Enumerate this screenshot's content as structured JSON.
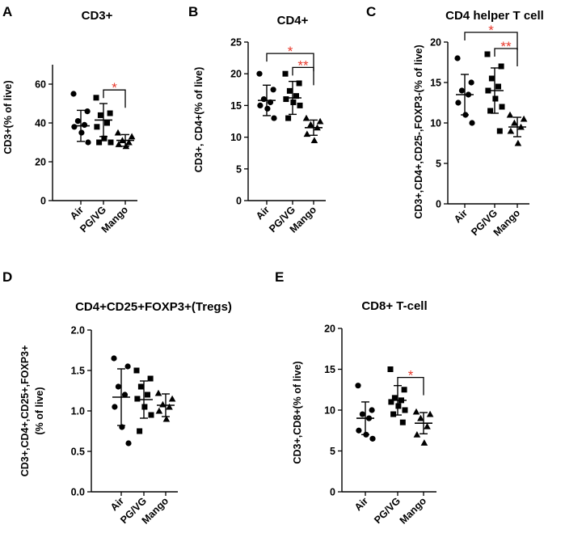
{
  "figure_colors": {
    "points": "#000000",
    "significance": "#e8392c"
  },
  "chart_data": [
    {
      "panel": "A",
      "type": "scatter",
      "title": "CD3+",
      "ylabel": "CD3+(% of live)",
      "categories": [
        "Air",
        "PG/VG",
        "Mango"
      ],
      "ylim": [
        0,
        70
      ],
      "yticks": [
        0,
        20,
        40,
        60
      ],
      "markers": [
        "circle",
        "square",
        "triangle"
      ],
      "groups": [
        {
          "name": "Air",
          "mean": 38.5,
          "sd": 8,
          "points": [
            55,
            46,
            41,
            39,
            38,
            35,
            30
          ]
        },
        {
          "name": "PG/VG",
          "mean": 41.5,
          "sd": 8.5,
          "points": [
            53,
            45,
            44,
            40,
            38,
            32,
            30,
            30
          ]
        },
        {
          "name": "Mango",
          "mean": 31,
          "sd": 3,
          "points": [
            35,
            33,
            31,
            30,
            29,
            28
          ]
        }
      ],
      "significance": [
        {
          "from": "PG/VG",
          "to": "Mango",
          "label": "*",
          "y": 57
        }
      ]
    },
    {
      "panel": "B",
      "type": "scatter",
      "title": "CD4+",
      "ylabel": "CD3+, CD4+(% of live)",
      "categories": [
        "Air",
        "PG/VG",
        "Mango"
      ],
      "ylim": [
        0,
        25
      ],
      "yticks": [
        0,
        5,
        10,
        15,
        20,
        25
      ],
      "markers": [
        "circle",
        "square",
        "triangle"
      ],
      "groups": [
        {
          "name": "Air",
          "mean": 15.8,
          "sd": 2.4,
          "points": [
            20,
            17.5,
            16,
            15.5,
            15,
            14.5,
            13
          ]
        },
        {
          "name": "PG/VG",
          "mean": 16.2,
          "sd": 2.6,
          "points": [
            20,
            18.5,
            17.3,
            16.5,
            16,
            15.5,
            15,
            13
          ]
        },
        {
          "name": "Mango",
          "mean": 11.5,
          "sd": 1.2,
          "points": [
            13,
            12.5,
            12,
            11.5,
            10.5,
            9.5
          ]
        }
      ],
      "significance": [
        {
          "from": "Air",
          "to": "Mango",
          "label": "*",
          "y": 23.2
        },
        {
          "from": "PG/VG",
          "to": "Mango",
          "label": "**",
          "y": 21
        }
      ]
    },
    {
      "panel": "C",
      "type": "scatter",
      "title": "CD4 helper T cell",
      "ylabel": "CD3+,CD4+,CD25-,FOXP3-(% of live)",
      "categories": [
        "Air",
        "PG/VG",
        "Mango"
      ],
      "ylim": [
        0,
        20
      ],
      "yticks": [
        0,
        5,
        10,
        15,
        20
      ],
      "markers": [
        "circle",
        "square",
        "triangle"
      ],
      "groups": [
        {
          "name": "Air",
          "mean": 13.5,
          "sd": 2.5,
          "points": [
            18,
            15,
            14,
            13.5,
            12.5,
            11,
            10
          ]
        },
        {
          "name": "PG/VG",
          "mean": 14,
          "sd": 2.8,
          "points": [
            18.5,
            17,
            15.5,
            14.5,
            14,
            13,
            12,
            11.5,
            9
          ]
        },
        {
          "name": "Mango",
          "mean": 9.5,
          "sd": 1.2,
          "points": [
            11,
            10.5,
            10,
            9.5,
            9,
            7.5
          ]
        }
      ],
      "significance": [
        {
          "from": "Air",
          "to": "Mango",
          "label": "*",
          "y": 21.2
        },
        {
          "from": "PG/VG",
          "to": "Mango",
          "label": "**",
          "y": 19.2
        }
      ]
    },
    {
      "panel": "D",
      "type": "scatter",
      "title": "CD4+CD25+FOXP3+(Tregs)",
      "ylabel_lines": [
        "CD3+,CD4+,CD25+,FOXP3+",
        "(% of live)"
      ],
      "categories": [
        "Air",
        "PG/VG",
        "Mango"
      ],
      "ylim": [
        0,
        2
      ],
      "yticks": [
        0.0,
        0.5,
        1.0,
        1.5,
        2.0
      ],
      "tick_labels": [
        "0.0",
        "0.5",
        "1.0",
        "1.5",
        "2.0"
      ],
      "markers": [
        "circle",
        "square",
        "triangle"
      ],
      "groups": [
        {
          "name": "Air",
          "mean": 1.17,
          "sd": 0.35,
          "points": [
            1.65,
            1.55,
            1.3,
            1.2,
            1.05,
            0.8,
            0.6
          ]
        },
        {
          "name": "PG/VG",
          "mean": 1.14,
          "sd": 0.23,
          "points": [
            1.5,
            1.4,
            1.3,
            1.2,
            1.15,
            1.05,
            0.95,
            0.75
          ]
        },
        {
          "name": "Mango",
          "mean": 1.07,
          "sd": 0.14,
          "points": [
            1.22,
            1.15,
            1.08,
            1.05,
            1.0,
            0.9
          ]
        }
      ],
      "significance": []
    },
    {
      "panel": "E",
      "type": "scatter",
      "title": "CD8+ T-cell",
      "ylabel": "CD3+,CD8+(% of live)",
      "categories": [
        "Air",
        "PG/VG",
        "Mango"
      ],
      "ylim": [
        0,
        20
      ],
      "yticks": [
        0,
        5,
        10,
        15,
        20
      ],
      "markers": [
        "circle",
        "square",
        "triangle"
      ],
      "groups": [
        {
          "name": "Air",
          "mean": 9,
          "sd": 2,
          "points": [
            13,
            10,
            9.5,
            9,
            7.5,
            7,
            6.5
          ]
        },
        {
          "name": "PG/VG",
          "mean": 11.2,
          "sd": 1.8,
          "points": [
            15,
            12.5,
            11.5,
            11.2,
            11,
            10.5,
            10,
            9.5,
            8.5
          ]
        },
        {
          "name": "Mango",
          "mean": 8.4,
          "sd": 1.3,
          "points": [
            9.8,
            9.5,
            9,
            8,
            7,
            6
          ]
        }
      ],
      "significance": [
        {
          "from": "PG/VG",
          "to": "Mango",
          "label": "*",
          "y": 14
        }
      ]
    }
  ]
}
